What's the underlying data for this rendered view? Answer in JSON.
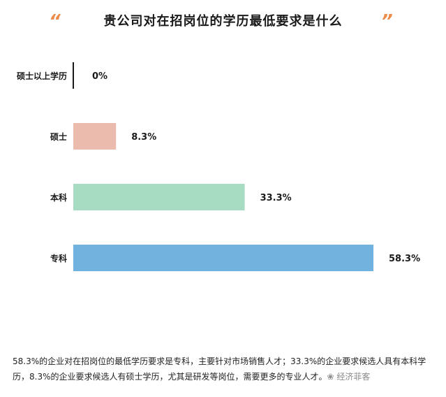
{
  "header": {
    "title": "贵公司对在招岗位的学历最低要求是什么",
    "quote_left": "“",
    "quote_right": "”"
  },
  "chart_data": {
    "type": "bar",
    "orientation": "horizontal",
    "title": "贵公司对在招岗位的学历最低要求是什么",
    "unit": "%",
    "categories": [
      "硕士以上学历",
      "硕士",
      "本科",
      "专科"
    ],
    "values": [
      0,
      8.3,
      33.3,
      58.3
    ],
    "labels": [
      "0%",
      "8.3%",
      "33.3%",
      "58.3%"
    ],
    "colors": [
      "#1a1a1a",
      "#ebbcae",
      "#a8dcc2",
      "#72b2de"
    ],
    "xlim": [
      0,
      58.3
    ],
    "grid": false,
    "legend": "none"
  },
  "note": {
    "text": "58.3%的企业对在招岗位的最低学历要求是专科，主要针对市场销售人才；33.3%的企业要求候选人具有本科学历，8.3%的企业要求候选人有硕士学历，尤其是研发等岗位，需要更多的专业人才。",
    "watermark": "❀ 经济菲客"
  }
}
